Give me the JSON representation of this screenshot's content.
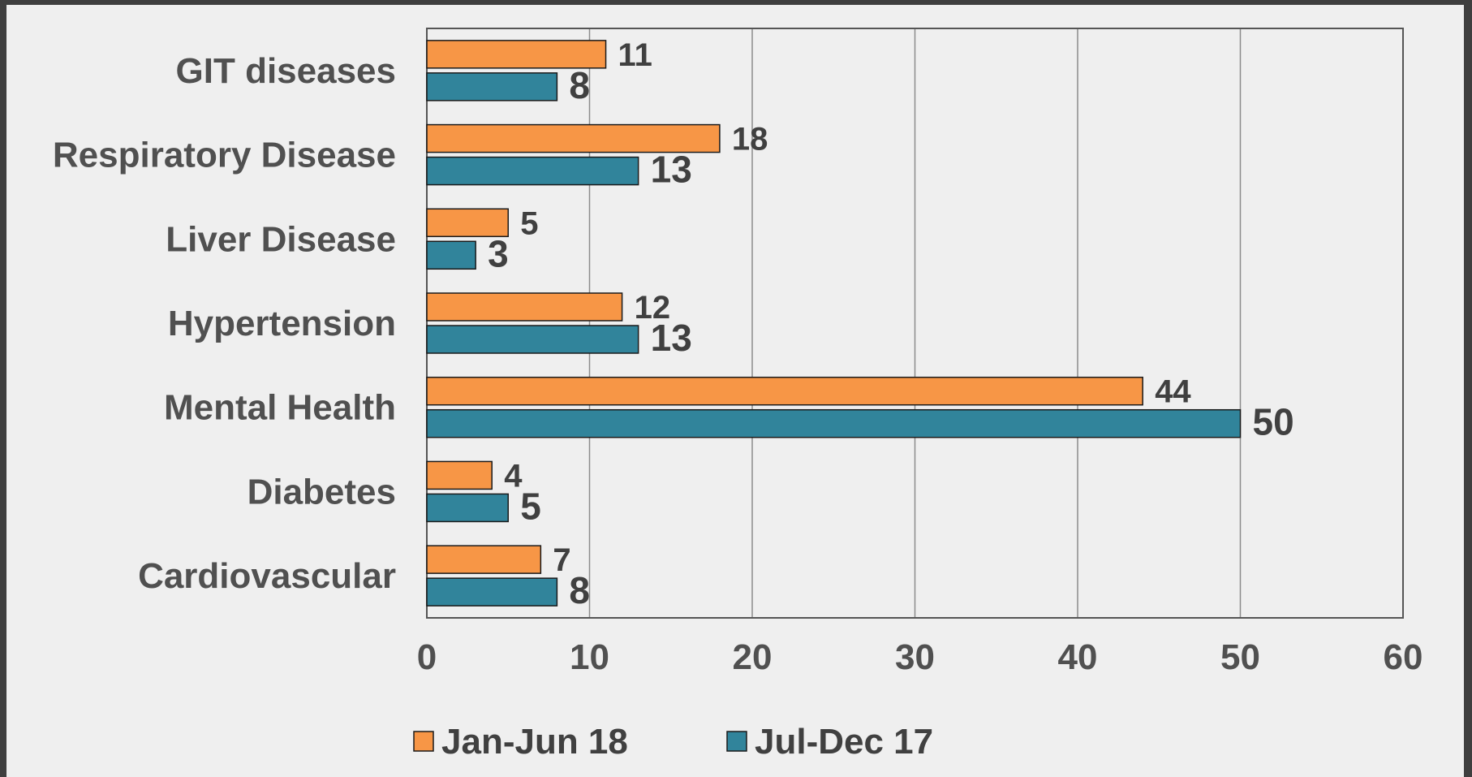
{
  "chart_data": {
    "type": "bar",
    "orientation": "horizontal",
    "categories": [
      "GIT diseases",
      "Respiratory Disease",
      "Liver Disease",
      "Hypertension",
      "Mental Health",
      "Diabetes",
      "Cardiovascular"
    ],
    "series": [
      {
        "name": "Jan-Jun 18",
        "color": "#f79646",
        "values": [
          11,
          18,
          5,
          12,
          44,
          4,
          7
        ]
      },
      {
        "name": "Jul-Dec 17",
        "color": "#31849b",
        "values": [
          8,
          13,
          3,
          13,
          50,
          5,
          8
        ]
      }
    ],
    "x_ticks": [
      "0",
      "10",
      "20",
      "30",
      "40",
      "50",
      "60"
    ],
    "xlim": [
      0,
      60
    ],
    "grid": true,
    "gridlines": "vertical",
    "legend_position": "bottom",
    "title": "",
    "xlabel": "",
    "ylabel": ""
  }
}
